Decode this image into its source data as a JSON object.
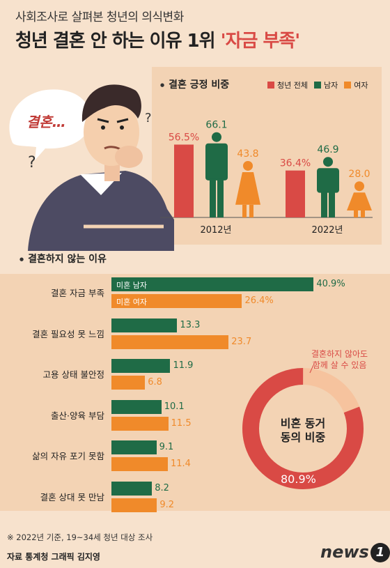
{
  "header": {
    "kicker": "사회조사로 살펴본 청년의 의식변화",
    "title_main": "청년 결혼 안 하는 이유 1위 ",
    "title_highlight": "'자금 부족'"
  },
  "illustration": {
    "bubble_text": "결혼…",
    "question_marks": [
      "?",
      "?"
    ]
  },
  "colors": {
    "total": "#d94a45",
    "male": "#1f6b46",
    "female": "#f08a2a",
    "panel": "#f3d3b4",
    "background": "#f7e2cd"
  },
  "chart_data": [
    {
      "type": "bar",
      "title": "결혼 긍정 비중",
      "categories": [
        "2012년",
        "2022년"
      ],
      "series": [
        {
          "name": "청년 전체",
          "values": [
            56.5,
            36.4
          ],
          "labels": [
            "56.5%",
            "36.4%"
          ]
        },
        {
          "name": "남자",
          "values": [
            66.1,
            46.9
          ],
          "labels": [
            "66.1",
            "46.9"
          ]
        },
        {
          "name": "여자",
          "values": [
            43.8,
            28.0
          ],
          "labels": [
            "43.8",
            "28.0"
          ]
        }
      ],
      "legend": "top-right"
    },
    {
      "type": "bar",
      "orientation": "horizontal",
      "title": "결혼하지 않는 이유",
      "categories": [
        "결혼 자금 부족",
        "결혼 필요성 못 느낌",
        "고용 상태 불안정",
        "출산·양육 부담",
        "삶의 자유 포기 못함",
        "결혼 상대 못 만남"
      ],
      "series": [
        {
          "name": "미혼 남자",
          "values": [
            40.9,
            13.3,
            11.9,
            10.1,
            9.1,
            8.2
          ],
          "labels": [
            "40.9%",
            "13.3",
            "11.9",
            "10.1",
            "9.1",
            "8.2"
          ]
        },
        {
          "name": "미혼 여자",
          "values": [
            26.4,
            23.7,
            6.8,
            11.5,
            11.4,
            9.2
          ],
          "labels": [
            "26.4%",
            "23.7",
            "6.8",
            "11.5",
            "11.4",
            "9.2"
          ]
        }
      ]
    },
    {
      "type": "pie",
      "title": "비혼 동거 동의 비중",
      "title_lines": [
        "비혼 동거",
        "동의 비중"
      ],
      "slices": [
        {
          "label": "결혼하지 않아도 함께 살 수 있음",
          "label_lines": [
            "결혼하지 않아도",
            "함께 살 수 있음"
          ],
          "value": 80.9,
          "value_label": "80.9%"
        },
        {
          "label": "",
          "value": 19.1
        }
      ]
    }
  ],
  "footer": {
    "note": "※ 2022년 기준, 19~34세 청년 대상 조사",
    "source": "자료 통계청  그래픽 김지영",
    "logo_text": "news",
    "logo_num": "1"
  }
}
